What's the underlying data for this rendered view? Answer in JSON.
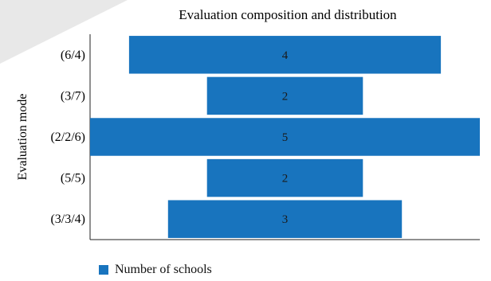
{
  "chart_data": {
    "type": "bar",
    "orientation": "horizontal",
    "layout": "centered-funnel",
    "title": "Evaluation composition and distribution",
    "xlabel": "",
    "ylabel": "Evaluation mode",
    "categories": [
      "(6/4)",
      "(3/7)",
      "(2/2/6)",
      "(5/5)",
      "(3/3/4)"
    ],
    "series": [
      {
        "name": "Number of schools",
        "values": [
          4,
          2,
          5,
          2,
          3
        ],
        "color": "#1874be"
      }
    ],
    "xlim": [
      0,
      5
    ],
    "grid": false,
    "legend_position": "bottom-left"
  }
}
